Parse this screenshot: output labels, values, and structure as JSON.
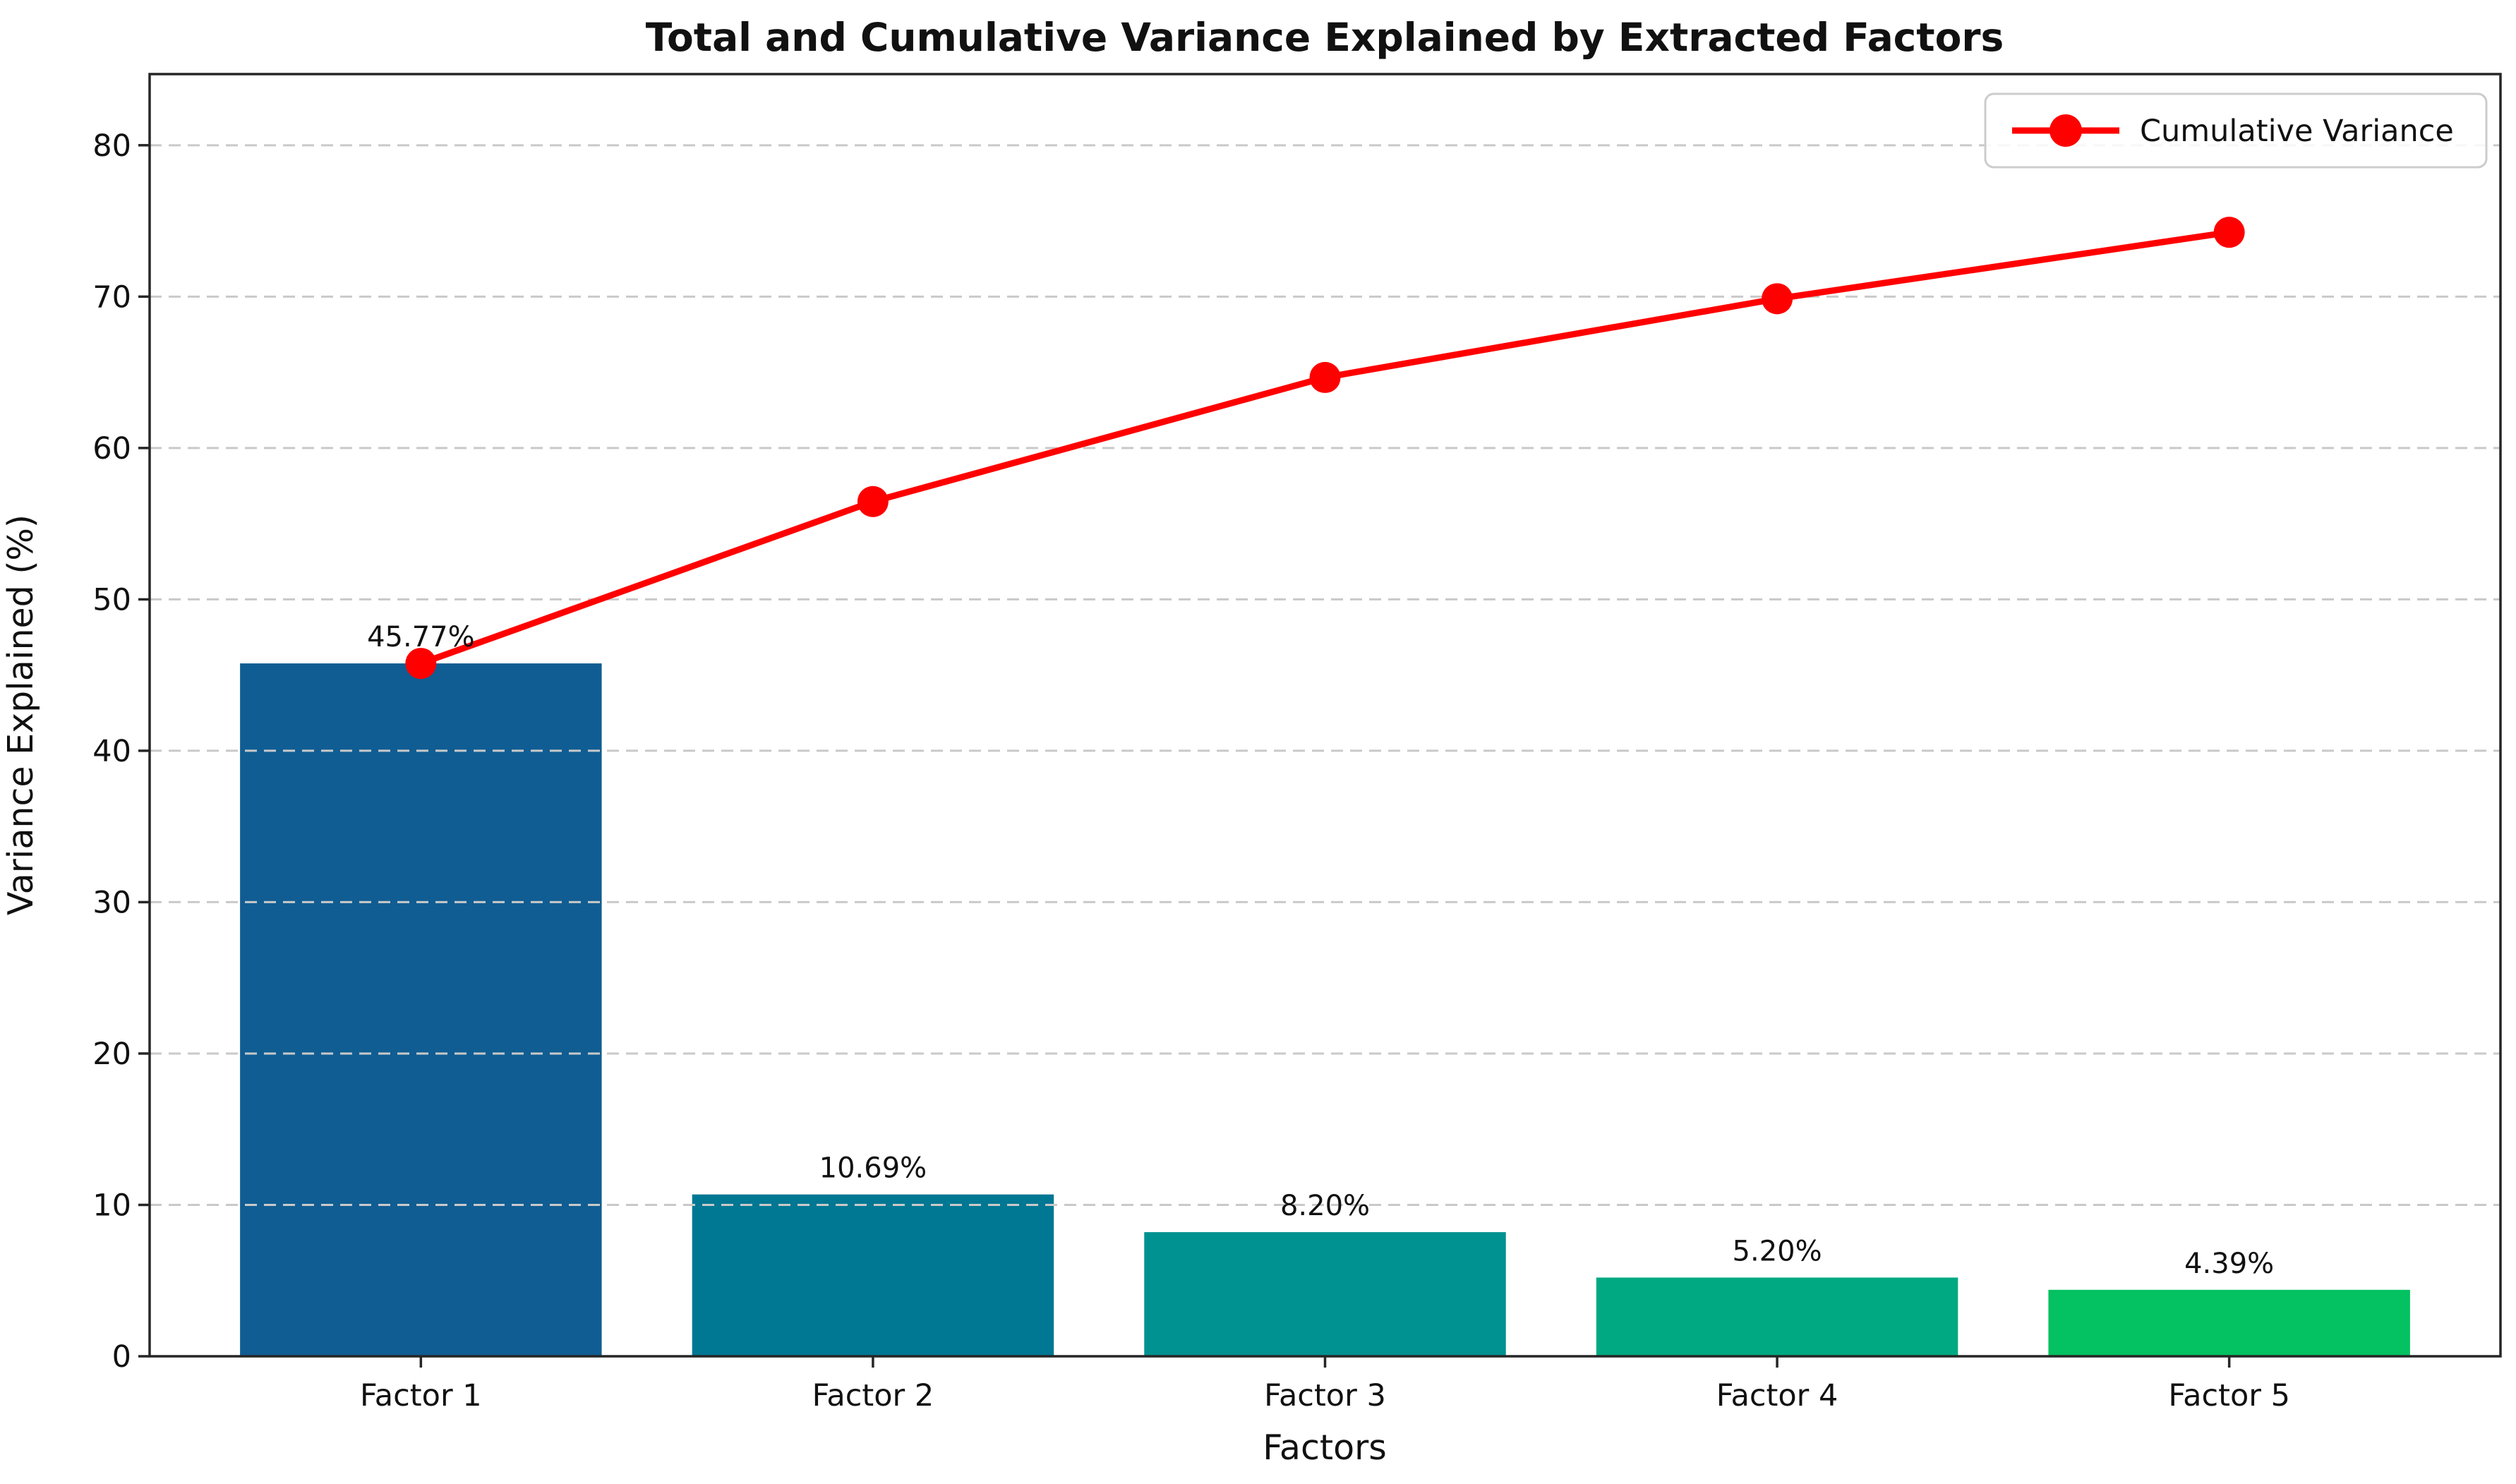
{
  "chart_data": {
    "type": "bar+line-pareto",
    "title": "Total and Cumulative Variance Explained by Extracted Factors",
    "xlabel": "Factors",
    "ylabel": "Variance Explained (%)",
    "categories": [
      "Factor 1",
      "Factor 2",
      "Factor 3",
      "Factor 4",
      "Factor 5"
    ],
    "bar_series": {
      "name": "Variance Explained",
      "values": [
        45.77,
        10.69,
        8.2,
        5.2,
        4.39
      ],
      "labels": [
        "45.77%",
        "10.69%",
        "8.20%",
        "5.20%",
        "4.39%"
      ],
      "colors": [
        "#105d93",
        "#007793",
        "#009290",
        "#00a982",
        "#04c161"
      ]
    },
    "line_series": {
      "name": "Cumulative Variance",
      "values": [
        45.77,
        56.46,
        64.66,
        69.86,
        74.25
      ],
      "color": "#ff0000",
      "marker": "circle"
    },
    "yticks": [
      0,
      10,
      20,
      30,
      40,
      50,
      60,
      70,
      80
    ],
    "ylim": [
      0,
      84.7
    ],
    "xlim_units": [
      -0.6,
      4.6
    ],
    "bar_width_units": 0.8,
    "grid": {
      "axis": "y",
      "style": "dashed",
      "color": "#c9c9c9",
      "on_top_of_bars": true
    },
    "legend": {
      "label": "Cumulative Variance",
      "position": "upper right",
      "frame_alpha": 0.85
    },
    "spine_color": "#262626",
    "background": "#ffffff"
  }
}
